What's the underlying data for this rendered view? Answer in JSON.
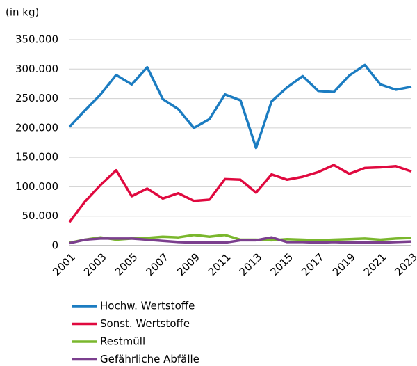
{
  "chart_data": {
    "type": "line",
    "title": "(in kg)",
    "categories": [
      "2001",
      null,
      "2003",
      null,
      "2005",
      null,
      "2007",
      null,
      "2009",
      null,
      "2011",
      null,
      "2013",
      null,
      "2015",
      null,
      "2017",
      null,
      "2019",
      null,
      "2021",
      null,
      "2023"
    ],
    "series": [
      {
        "name": "Hochw. Wertstoffe",
        "color": "#1b7cc1",
        "values": [
          202000,
          230000,
          257000,
          290000,
          274000,
          303000,
          249000,
          232000,
          200000,
          215000,
          257000,
          247000,
          166000,
          245000,
          269000,
          288000,
          263000,
          261000,
          289000,
          307000,
          274000,
          265000,
          270000
        ]
      },
      {
        "name": "Sonst. Wertstoffe",
        "color": "#e0093f",
        "values": [
          40000,
          75000,
          103000,
          128000,
          84000,
          97000,
          80000,
          89000,
          76000,
          78000,
          113000,
          112000,
          90000,
          121000,
          112000,
          117000,
          125000,
          137000,
          122000,
          132000,
          133000,
          135000,
          126000
        ]
      },
      {
        "name": "Restmüll",
        "color": "#7ab72d",
        "values": [
          5000,
          10000,
          14000,
          10000,
          12000,
          13000,
          15000,
          14000,
          18000,
          15000,
          18000,
          10000,
          10000,
          9000,
          11000,
          10000,
          9000,
          10000,
          11000,
          12000,
          10000,
          12000,
          13000
        ]
      },
      {
        "name": "Gefährliche Abfälle",
        "color": "#7b3f8e",
        "values": [
          4000,
          10000,
          12000,
          12000,
          12000,
          10000,
          8000,
          6000,
          5000,
          5000,
          5000,
          9000,
          9000,
          14000,
          6000,
          6000,
          5000,
          6000,
          5000,
          5000,
          5000,
          6000,
          7000
        ]
      }
    ],
    "ylim": [
      0,
      350000
    ],
    "yticks": [
      0,
      {
        "value": 50000,
        "label": "50.000"
      },
      {
        "value": 100000,
        "label": "100.000"
      },
      {
        "value": 150000,
        "label": "150.000"
      },
      {
        "value": 200000,
        "label": "200.000"
      },
      {
        "value": 250000,
        "label": "250.000"
      },
      {
        "value": 300000,
        "label": "300.000"
      },
      {
        "value": 350000,
        "label": "350.000"
      }
    ],
    "grid": true
  }
}
